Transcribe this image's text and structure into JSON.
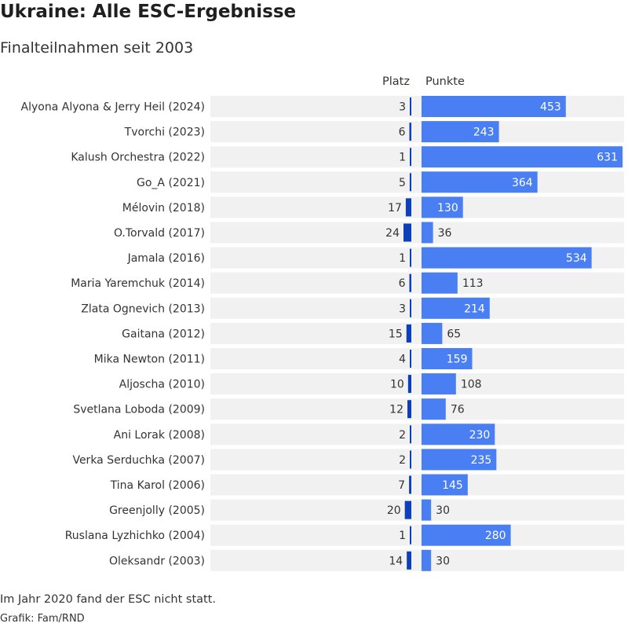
{
  "title": "Ukraine: Alle ESC-Ergebnisse",
  "subtitle": "Finalteilnahmen seit 2003",
  "column_headers": {
    "place": "Platz",
    "points": "Punkte"
  },
  "footer": {
    "note": "Im Jahr 2020 fand der ESC nicht statt.",
    "source": "Grafik: Fam/RND"
  },
  "colors": {
    "points_bar": "#4a7ff3",
    "place_bar": "#0d3fb8",
    "row_background": "#f1f1f1",
    "label_inside": "#ffffff",
    "label_outside": "#333333"
  },
  "chart_data": {
    "type": "bar",
    "orientation": "horizontal",
    "categories": [
      "Alyona Alyona & Jerry Heil (2024)",
      "Tvorchi (2023)",
      "Kalush Orchestra (2022)",
      "Go_A (2021)",
      "Mélovin (2018)",
      "O.Torvald (2017)",
      "Jamala (2016)",
      "Maria Yaremchuk (2014)",
      "Zlata Ognevich (2013)",
      "Gaitana (2012)",
      "Mika Newton (2011)",
      "Aljoscha (2010)",
      "Svetlana Loboda (2009)",
      "Ani Lorak (2008)",
      "Verka Serduchka (2007)",
      "Tina Karol (2006)",
      "Greenjolly (2005)",
      "Ruslana Lyzhichko (2004)",
      "Oleksandr (2003)"
    ],
    "series": [
      {
        "name": "Platz",
        "values": [
          3,
          6,
          1,
          5,
          17,
          24,
          1,
          6,
          3,
          15,
          4,
          10,
          12,
          2,
          2,
          7,
          20,
          1,
          14
        ]
      },
      {
        "name": "Punkte",
        "values": [
          453,
          243,
          631,
          364,
          130,
          36,
          534,
          113,
          214,
          65,
          159,
          108,
          76,
          230,
          235,
          145,
          30,
          280,
          30
        ]
      }
    ],
    "xlim_points": [
      0,
      631
    ],
    "xlim_place": [
      0,
      26
    ],
    "grid": false,
    "legend": "none"
  }
}
